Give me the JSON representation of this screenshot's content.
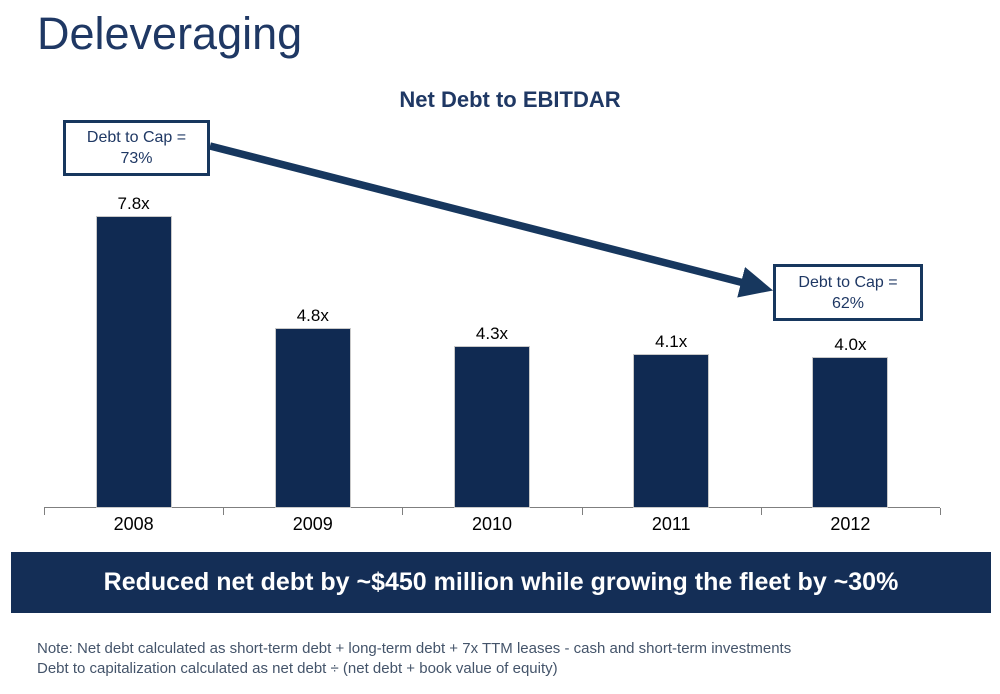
{
  "slide": {
    "title": "Deleveraging",
    "banner_text": "Reduced net debt by ~$450 million while growing the fleet by ~30%",
    "notes": [
      "Note: Net debt calculated as short-term debt + long-term debt + 7x TTM leases - cash and short-term investments",
      "Debt to capitalization calculated as net debt ÷ (net debt + book value of equity)"
    ]
  },
  "chart_data": {
    "type": "bar",
    "title": "Net Debt to EBITDAR",
    "categories": [
      "2008",
      "2009",
      "2010",
      "2011",
      "2012"
    ],
    "values": [
      7.8,
      4.8,
      4.3,
      4.1,
      4.0
    ],
    "value_labels": [
      "7.8x",
      "4.8x",
      "4.3x",
      "4.1x",
      "4.0x"
    ],
    "xlabel": "",
    "ylabel": "",
    "ylim": [
      0,
      8.5
    ],
    "grid": "off",
    "legend": "none",
    "annotations": [
      {
        "line1": "Debt to Cap =",
        "line2": "73%",
        "anchor_category": "2008"
      },
      {
        "line1": "Debt to Cap =",
        "line2": "62%",
        "anchor_category": "2012"
      }
    ],
    "arrow": {
      "from": "callout-73%",
      "to": "callout-62%"
    }
  },
  "colors": {
    "bar": "#102A52",
    "banner_bg": "#142E56",
    "navy_text": "#1F3864",
    "border_arrow": "#17375E",
    "axis": "#7f7f7f",
    "note_text": "#44546A",
    "banner_text": "#ffffff"
  }
}
